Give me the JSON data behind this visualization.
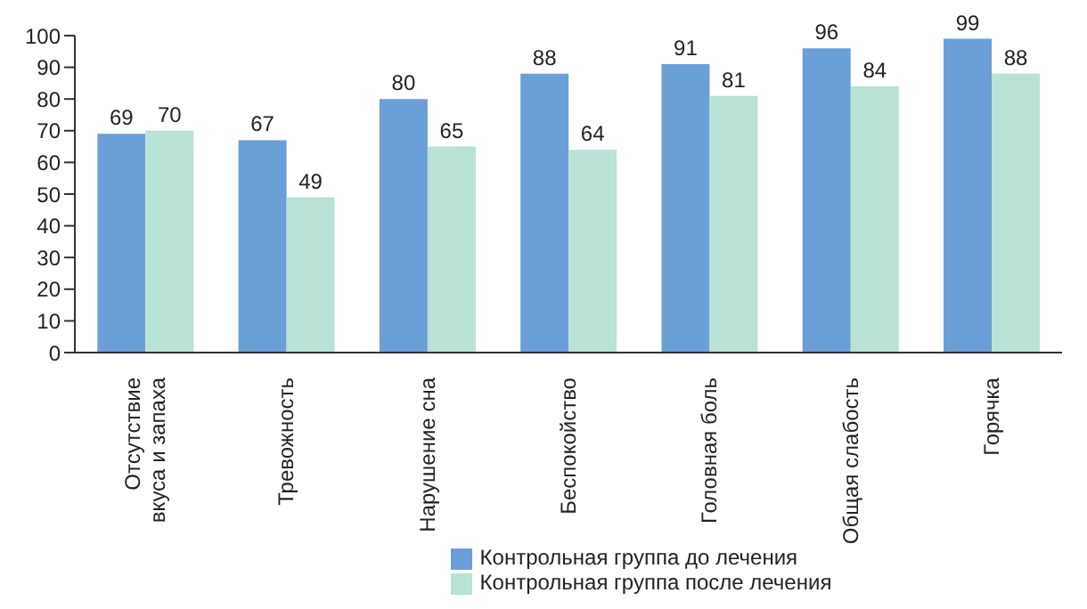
{
  "chart_data": {
    "type": "bar",
    "categories": [
      "Отсутствие вкуса и запаха",
      "Тревожность",
      "Нарушение сна",
      "Беспокойство",
      "Головная боль",
      "Общая слабость",
      "Горячка"
    ],
    "series": [
      {
        "name": "Контрольная группа до лечения",
        "color": "#6a9fd8",
        "values": [
          69,
          67,
          80,
          88,
          91,
          96,
          99
        ]
      },
      {
        "name": "Контрольная группа после лечения",
        "color": "#b8e2d5",
        "values": [
          70,
          49,
          65,
          64,
          81,
          84,
          88
        ]
      }
    ],
    "ylim": [
      0,
      100
    ],
    "yticks": [
      0,
      10,
      20,
      30,
      40,
      50,
      60,
      70,
      80,
      90,
      100
    ],
    "grid": false,
    "legend": "bottom",
    "data_labels": true
  }
}
